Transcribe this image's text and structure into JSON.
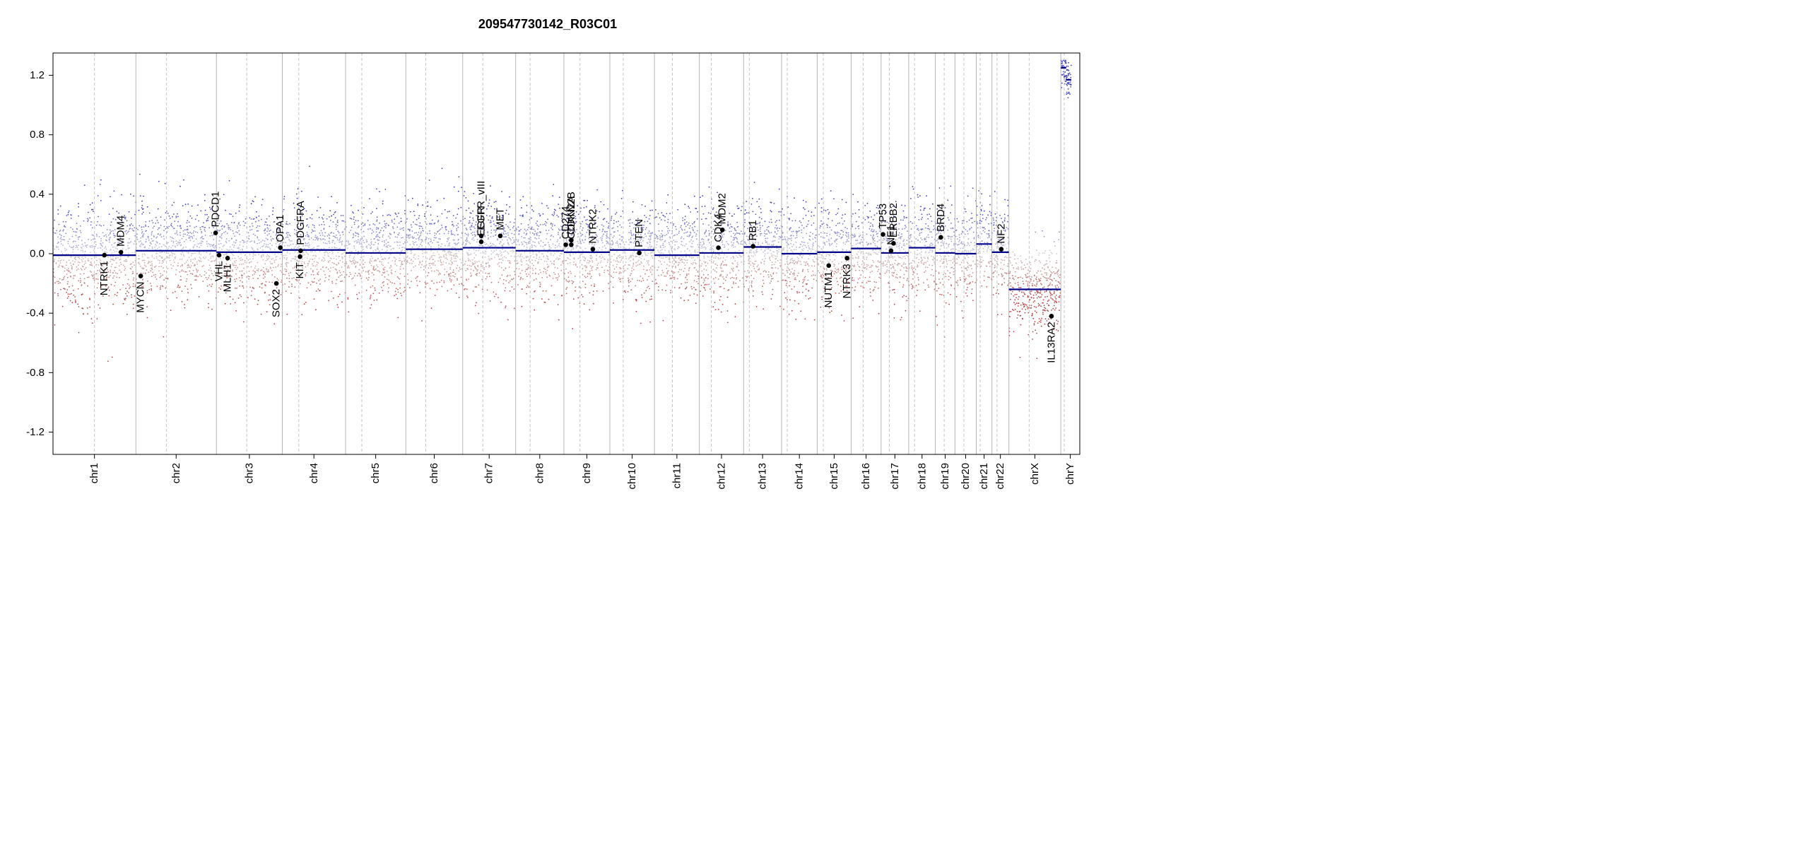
{
  "chart_data": {
    "type": "scatter",
    "title": "209547730142_R03C01",
    "xlabel": "",
    "ylabel": "",
    "ylim": [
      -1.35,
      1.35
    ],
    "y_ticks": [
      -1.2,
      -0.8,
      -0.4,
      0.0,
      0.4,
      0.8,
      1.2
    ],
    "y_tick_labels": [
      "-1.2",
      "-0.8",
      "-0.4",
      "0.0",
      "0.4",
      "0.8",
      "1.2"
    ],
    "colors": {
      "gain": "#3a3aa8",
      "loss": "#a83a3a",
      "segment": "#00008b",
      "gene_point": "#000000"
    },
    "chromosomes": [
      {
        "name": "chr1",
        "len": 249,
        "centromere": 0.5,
        "segments": [
          {
            "from": 0,
            "to": 1,
            "y": -0.01
          }
        ],
        "noise": 0.17
      },
      {
        "name": "chr2",
        "len": 242,
        "centromere": 0.38,
        "segments": [
          {
            "from": 0,
            "to": 1,
            "y": 0.02
          }
        ],
        "noise": 0.15
      },
      {
        "name": "chr3",
        "len": 198,
        "centromere": 0.46,
        "segments": [
          {
            "from": 0,
            "to": 1,
            "y": 0.01
          }
        ],
        "noise": 0.15
      },
      {
        "name": "chr4",
        "len": 190,
        "centromere": 0.26,
        "segments": [
          {
            "from": 0,
            "to": 1,
            "y": 0.025
          }
        ],
        "noise": 0.15
      },
      {
        "name": "chr5",
        "len": 181,
        "centromere": 0.27,
        "segments": [
          {
            "from": 0,
            "to": 1,
            "y": 0.005
          }
        ],
        "noise": 0.15
      },
      {
        "name": "chr6",
        "len": 171,
        "centromere": 0.35,
        "segments": [
          {
            "from": 0,
            "to": 1,
            "y": 0.03
          }
        ],
        "noise": 0.15
      },
      {
        "name": "chr7",
        "len": 159,
        "centromere": 0.38,
        "segments": [
          {
            "from": 0,
            "to": 1,
            "y": 0.04
          }
        ],
        "noise": 0.16
      },
      {
        "name": "chr8",
        "len": 145,
        "centromere": 0.3,
        "segments": [
          {
            "from": 0,
            "to": 1,
            "y": 0.02
          }
        ],
        "noise": 0.15
      },
      {
        "name": "chr9",
        "len": 138,
        "centromere": 0.35,
        "segments": [
          {
            "from": 0,
            "to": 1,
            "y": 0.01
          }
        ],
        "noise": 0.15
      },
      {
        "name": "chr10",
        "len": 134,
        "centromere": 0.3,
        "segments": [
          {
            "from": 0,
            "to": 1,
            "y": 0.025
          }
        ],
        "noise": 0.15
      },
      {
        "name": "chr11",
        "len": 135,
        "centromere": 0.4,
        "segments": [
          {
            "from": 0,
            "to": 1,
            "y": -0.01
          }
        ],
        "noise": 0.15
      },
      {
        "name": "chr12",
        "len": 133,
        "centromere": 0.27,
        "segments": [
          {
            "from": 0,
            "to": 1,
            "y": 0.005
          }
        ],
        "noise": 0.15
      },
      {
        "name": "chr13",
        "len": 114,
        "centromere": 0.15,
        "segments": [
          {
            "from": 0,
            "to": 1,
            "y": 0.045
          }
        ],
        "noise": 0.16
      },
      {
        "name": "chr14",
        "len": 107,
        "centromere": 0.16,
        "segments": [
          {
            "from": 0,
            "to": 1,
            "y": 0.0
          }
        ],
        "noise": 0.15
      },
      {
        "name": "chr15",
        "len": 102,
        "centromere": 0.18,
        "segments": [
          {
            "from": 0,
            "to": 1,
            "y": 0.01
          }
        ],
        "noise": 0.15
      },
      {
        "name": "chr16",
        "len": 90,
        "centromere": 0.4,
        "segments": [
          {
            "from": 0,
            "to": 1,
            "y": 0.035
          }
        ],
        "noise": 0.15
      },
      {
        "name": "chr17",
        "len": 83,
        "centromere": 0.3,
        "segments": [
          {
            "from": 0,
            "to": 1,
            "y": 0.005
          }
        ],
        "noise": 0.16
      },
      {
        "name": "chr18",
        "len": 80,
        "centromere": 0.22,
        "segments": [
          {
            "from": 0,
            "to": 1,
            "y": 0.04
          }
        ],
        "noise": 0.15
      },
      {
        "name": "chr19",
        "len": 59,
        "centromere": 0.45,
        "segments": [
          {
            "from": 0,
            "to": 1,
            "y": 0.005
          }
        ],
        "noise": 0.16
      },
      {
        "name": "chr20",
        "len": 64,
        "centromere": 0.42,
        "segments": [
          {
            "from": 0,
            "to": 1,
            "y": 0.0
          }
        ],
        "noise": 0.15
      },
      {
        "name": "chr21",
        "len": 47,
        "centromere": 0.25,
        "segments": [
          {
            "from": 0,
            "to": 1,
            "y": 0.065
          }
        ],
        "noise": 0.15
      },
      {
        "name": "chr22",
        "len": 51,
        "centromere": 0.3,
        "segments": [
          {
            "from": 0,
            "to": 1,
            "y": 0.01
          }
        ],
        "noise": 0.15
      },
      {
        "name": "chrX",
        "len": 156,
        "centromere": 0.39,
        "segments": [
          {
            "from": 0,
            "to": 1,
            "y": -0.24
          }
        ],
        "noise": 0.14
      },
      {
        "name": "chrY",
        "len": 57,
        "centromere": 0.18,
        "segments": [
          {
            "from": 0.0,
            "to": 0.28,
            "y": 1.25
          },
          {
            "from": 0.28,
            "to": 0.55,
            "y": 1.17
          }
        ],
        "noise": 0.12
      }
    ],
    "genes": [
      {
        "name": "NTRK1",
        "chr": "chr1",
        "pos": 0.62,
        "y": -0.01,
        "label": "below"
      },
      {
        "name": "MDM4",
        "chr": "chr1",
        "pos": 0.82,
        "y": 0.01,
        "label": "above"
      },
      {
        "name": "MYCN",
        "chr": "chr2",
        "pos": 0.06,
        "y": -0.15,
        "label": "below"
      },
      {
        "name": "PDCD1",
        "chr": "chr2",
        "pos": 0.99,
        "y": 0.14,
        "label": "above"
      },
      {
        "name": "VHL",
        "chr": "chr3",
        "pos": 0.04,
        "y": -0.01,
        "label": "below"
      },
      {
        "name": "MLH1",
        "chr": "chr3",
        "pos": 0.17,
        "y": -0.03,
        "label": "below"
      },
      {
        "name": "SOX2",
        "chr": "chr3",
        "pos": 0.91,
        "y": -0.2,
        "label": "below"
      },
      {
        "name": "OPA1",
        "chr": "chr3",
        "pos": 0.97,
        "y": 0.04,
        "label": "above"
      },
      {
        "name": "KIT",
        "chr": "chr4",
        "pos": 0.28,
        "y": -0.02,
        "label": "below"
      },
      {
        "name": "PDGFRA",
        "chr": "chr4",
        "pos": 0.29,
        "y": 0.02,
        "label": "above"
      },
      {
        "name": "EGFR_vIII",
        "chr": "chr7",
        "pos": 0.35,
        "y": 0.12,
        "label": "above"
      },
      {
        "name": "EGFR",
        "chr": "chr7",
        "pos": 0.35,
        "y": 0.08,
        "label": "above"
      },
      {
        "name": "MET",
        "chr": "chr7",
        "pos": 0.71,
        "y": 0.12,
        "label": "above"
      },
      {
        "name": "CD274",
        "chr": "chr9",
        "pos": 0.04,
        "y": 0.06,
        "label": "above"
      },
      {
        "name": "CDKN2A",
        "chr": "chr9",
        "pos": 0.16,
        "y": 0.06,
        "label": "above"
      },
      {
        "name": "CDKN2B",
        "chr": "chr9",
        "pos": 0.16,
        "y": 0.09,
        "label": "above"
      },
      {
        "name": "NTRK2",
        "chr": "chr9",
        "pos": 0.63,
        "y": 0.03,
        "label": "above"
      },
      {
        "name": "PTEN",
        "chr": "chr10",
        "pos": 0.66,
        "y": 0.005,
        "label": "above"
      },
      {
        "name": "CDK4",
        "chr": "chr12",
        "pos": 0.43,
        "y": 0.04,
        "label": "above"
      },
      {
        "name": "MDM2",
        "chr": "chr12",
        "pos": 0.52,
        "y": 0.16,
        "label": "above"
      },
      {
        "name": "RB1",
        "chr": "chr13",
        "pos": 0.25,
        "y": 0.05,
        "label": "above"
      },
      {
        "name": "NUTM1",
        "chr": "chr15",
        "pos": 0.34,
        "y": -0.08,
        "label": "below"
      },
      {
        "name": "NTRK3",
        "chr": "chr15",
        "pos": 0.88,
        "y": -0.03,
        "label": "below"
      },
      {
        "name": "TP53",
        "chr": "chr17",
        "pos": 0.07,
        "y": 0.13,
        "label": "above"
      },
      {
        "name": "ERBB2",
        "chr": "chr17",
        "pos": 0.45,
        "y": 0.07,
        "label": "above"
      },
      {
        "name": "NF1",
        "chr": "chr17",
        "pos": 0.36,
        "y": 0.02,
        "label": "above"
      },
      {
        "name": "BRD4",
        "chr": "chr19",
        "pos": 0.28,
        "y": 0.11,
        "label": "above"
      },
      {
        "name": "NF2",
        "chr": "chr22",
        "pos": 0.55,
        "y": 0.03,
        "label": "above"
      },
      {
        "name": "IL13RA2",
        "chr": "chrX",
        "pos": 0.82,
        "y": -0.42,
        "label": "below"
      }
    ]
  }
}
